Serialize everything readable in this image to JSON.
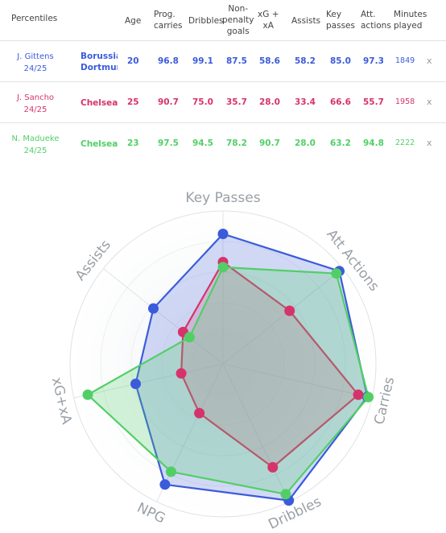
{
  "table": {
    "headers": {
      "percentiles": "Percentiles",
      "age": "Age",
      "prog_carries": [
        "Prog.",
        "carries"
      ],
      "dribbles": "Dribbles",
      "npg": [
        "Non-",
        "penalty",
        "goals"
      ],
      "xg_xa": [
        "xG +",
        "xA"
      ],
      "assists": "Assists",
      "key_passes": [
        "Key",
        "passes"
      ],
      "att_actions": [
        "Att.",
        "actions"
      ],
      "minutes": [
        "Minutes",
        "played"
      ]
    },
    "rows": [
      {
        "name": "J. Gittens",
        "season": "24/25",
        "club": [
          "Borussia",
          "Dortmund"
        ],
        "age": "20",
        "prog_carries": "96.8",
        "dribbles": "99.1",
        "npg": "87.5",
        "xg_xa": "58.6",
        "assists": "58.2",
        "key_passes": "85.0",
        "att_actions": "97.3",
        "minutes": "1849",
        "remove": "x",
        "color": "#3b5bdb"
      },
      {
        "name": "J. Sancho",
        "season": "24/25",
        "club": [
          "Chelsea"
        ],
        "age": "25",
        "prog_carries": "90.7",
        "dribbles": "75.0",
        "npg": "35.7",
        "xg_xa": "28.0",
        "assists": "33.4",
        "key_passes": "66.6",
        "att_actions": "55.7",
        "minutes": "1958",
        "remove": "x",
        "color": "#d6336c"
      },
      {
        "name": "N. Madueke",
        "season": "24/25",
        "club": [
          "Chelsea"
        ],
        "age": "23",
        "prog_carries": "97.5",
        "dribbles": "94.5",
        "npg": "78.2",
        "xg_xa": "90.7",
        "assists": "28.0",
        "key_passes": "63.2",
        "att_actions": "94.8",
        "minutes": "2222",
        "remove": "x",
        "color": "#51cf66"
      }
    ]
  },
  "chart_data": {
    "type": "radar",
    "axes": [
      "Key Passes",
      "Att Actions",
      "Carries",
      "Dribbles",
      "NPG",
      "xG+xA",
      "Assists"
    ],
    "rmax": 100,
    "series": [
      {
        "name": "J. Gittens",
        "color": "#3b5bdb",
        "fill": "rgba(59,91,219,0.22)",
        "values": [
          85.0,
          97.3,
          96.8,
          99.1,
          87.5,
          58.6,
          58.2
        ]
      },
      {
        "name": "J. Sancho",
        "color": "#d6336c",
        "fill": "rgba(214,51,108,0.18)",
        "values": [
          66.6,
          55.7,
          90.7,
          75.0,
          35.7,
          28.0,
          33.4
        ]
      },
      {
        "name": "N. Madueke",
        "color": "#51cf66",
        "fill": "rgba(81,207,102,0.25)",
        "values": [
          63.2,
          94.8,
          97.5,
          94.5,
          78.2,
          90.7,
          28.0
        ]
      }
    ]
  }
}
